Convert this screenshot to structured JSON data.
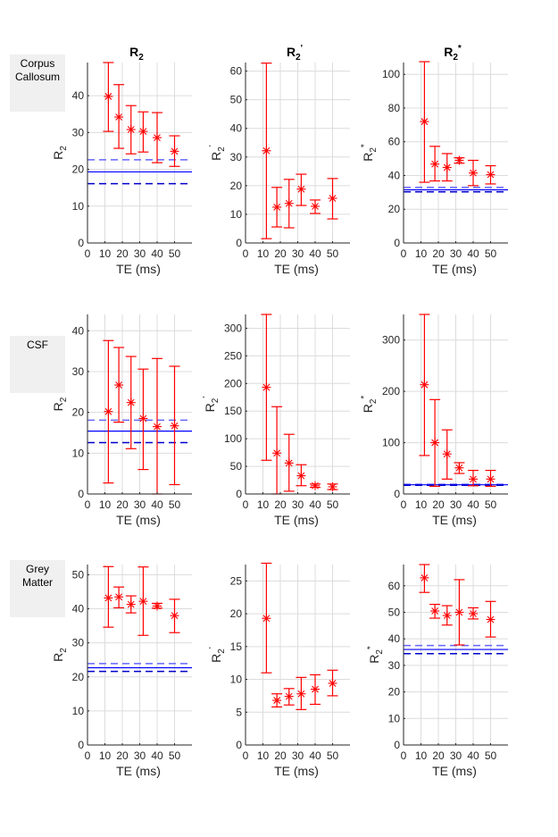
{
  "column_titles": [
    {
      "base": "R",
      "sub": "2",
      "sup": ""
    },
    {
      "base": "R",
      "sub": "2",
      "sup": "'"
    },
    {
      "base": "R",
      "sub": "2",
      "sup": "*"
    }
  ],
  "row_labels": [
    "Corpus Callosum",
    "CSF",
    "Grey Matter"
  ],
  "colors": {
    "data": "#ff0000",
    "ref_mean": "#0000ff",
    "ref_ci_dark": "#0000cc",
    "ref_ci_light": "#6666ff",
    "grid": "#dcdcdc",
    "axis": "#262626",
    "row_label_bg": "#f0f0f0"
  },
  "chart_data": [
    {
      "type": "errorbar",
      "row": "Corpus Callosum",
      "column": "R2",
      "xlabel": "TE (ms)",
      "ylabel": {
        "base": "R",
        "sub": "2",
        "sup": ""
      },
      "xlim": [
        0,
        60
      ],
      "xticks": [
        0,
        10,
        20,
        30,
        40,
        50
      ],
      "ylim": [
        0,
        49
      ],
      "yticks": [
        0,
        10,
        20,
        30,
        40
      ],
      "grid": true,
      "x": [
        12,
        18,
        25,
        32,
        40,
        50
      ],
      "y": [
        39.8,
        34.2,
        30.8,
        30.3,
        28.6,
        24.9
      ],
      "lower": [
        30.3,
        25.7,
        24.2,
        24.7,
        21.8,
        20.8
      ],
      "upper": [
        49.0,
        43.0,
        37.3,
        35.6,
        35.4,
        29.1
      ],
      "reference": {
        "mean": 19.3,
        "ci_low": 16.1,
        "ci_high": 22.6
      }
    },
    {
      "type": "errorbar",
      "row": "Corpus Callosum",
      "column": "R2'",
      "xlabel": "TE (ms)",
      "ylabel": {
        "base": "R",
        "sub": "2",
        "sup": "'"
      },
      "xlim": [
        0,
        60
      ],
      "xticks": [
        0,
        10,
        20,
        30,
        40,
        50
      ],
      "ylim": [
        0,
        63
      ],
      "yticks": [
        0,
        10,
        20,
        30,
        40,
        50,
        60
      ],
      "grid": true,
      "x": [
        12,
        18,
        25,
        32,
        40,
        50
      ],
      "y": [
        32.2,
        12.5,
        13.8,
        18.8,
        12.8,
        15.6
      ],
      "lower": [
        1.5,
        5.6,
        5.3,
        13.1,
        10.3,
        8.4
      ],
      "upper": [
        62.8,
        19.4,
        22.2,
        24.0,
        15.0,
        22.5
      ],
      "reference": null
    },
    {
      "type": "errorbar",
      "row": "Corpus Callosum",
      "column": "R2*",
      "xlabel": "TE (ms)",
      "ylabel": {
        "base": "R",
        "sub": "2",
        "sup": "*"
      },
      "xlim": [
        0,
        60
      ],
      "xticks": [
        0,
        10,
        20,
        30,
        40,
        50
      ],
      "ylim": [
        0,
        107
      ],
      "yticks": [
        0,
        20,
        40,
        60,
        80,
        100
      ],
      "grid": true,
      "x": [
        12,
        18,
        25,
        32,
        40,
        50
      ],
      "y": [
        72.0,
        46.8,
        44.8,
        49.0,
        41.5,
        40.5
      ],
      "lower": [
        36.0,
        36.8,
        36.8,
        47.3,
        34.0,
        35.0
      ],
      "upper": [
        107.5,
        57.3,
        53.0,
        50.5,
        49.0,
        45.8
      ],
      "reference": {
        "mean": 31.5,
        "ci_low": 30.3,
        "ci_high": 33.0
      }
    },
    {
      "type": "errorbar",
      "row": "CSF",
      "column": "R2",
      "xlabel": "TE (ms)",
      "ylabel": {
        "base": "R",
        "sub": "2",
        "sup": ""
      },
      "xlim": [
        0,
        60
      ],
      "xticks": [
        0,
        10,
        20,
        30,
        40,
        50
      ],
      "ylim": [
        0,
        44
      ],
      "yticks": [
        0,
        10,
        20,
        30,
        40
      ],
      "grid": true,
      "x": [
        12,
        18,
        25,
        32,
        40,
        50
      ],
      "y": [
        20.2,
        26.7,
        22.4,
        18.5,
        16.5,
        16.7
      ],
      "lower": [
        2.7,
        17.6,
        11.1,
        6.0,
        0.0,
        2.3
      ],
      "upper": [
        37.6,
        35.9,
        33.7,
        30.6,
        33.2,
        31.3
      ],
      "reference": {
        "mean": 15.4,
        "ci_low": 12.6,
        "ci_high": 18.1
      }
    },
    {
      "type": "errorbar",
      "row": "CSF",
      "column": "R2'",
      "xlabel": "TE (ms)",
      "ylabel": {
        "base": "R",
        "sub": "2",
        "sup": "'"
      },
      "xlim": [
        0,
        60
      ],
      "xticks": [
        0,
        10,
        20,
        30,
        40,
        50
      ],
      "ylim": [
        0,
        325
      ],
      "yticks": [
        0,
        50,
        100,
        150,
        200,
        250,
        300
      ],
      "grid": true,
      "x": [
        12,
        18,
        25,
        32,
        40,
        50
      ],
      "y": [
        193,
        74,
        56,
        33,
        15,
        13
      ],
      "lower": [
        61,
        0,
        5,
        15,
        12,
        8
      ],
      "upper": [
        325,
        158,
        108,
        53,
        18,
        18
      ],
      "reference": null
    },
    {
      "type": "errorbar",
      "row": "CSF",
      "column": "R2*",
      "xlabel": "TE (ms)",
      "ylabel": {
        "base": "R",
        "sub": "2",
        "sup": "*"
      },
      "xlim": [
        0,
        60
      ],
      "xticks": [
        0,
        10,
        20,
        30,
        40,
        50
      ],
      "ylim": [
        0,
        350
      ],
      "yticks": [
        0,
        100,
        200,
        300
      ],
      "grid": true,
      "x": [
        12,
        18,
        25,
        32,
        40,
        50
      ],
      "y": [
        213,
        100,
        78,
        51,
        29,
        29
      ],
      "lower": [
        75,
        15,
        29,
        40,
        16,
        15
      ],
      "upper": [
        350,
        184,
        125,
        61,
        46,
        46
      ],
      "reference": {
        "mean": 18,
        "ci_low": 17,
        "ci_high": 19
      }
    },
    {
      "type": "errorbar",
      "row": "Grey Matter",
      "column": "R2",
      "xlabel": "TE (ms)",
      "ylabel": {
        "base": "R",
        "sub": "2",
        "sup": ""
      },
      "xlim": [
        0,
        60
      ],
      "xticks": [
        0,
        10,
        20,
        30,
        40,
        50
      ],
      "ylim": [
        0,
        53
      ],
      "yticks": [
        0,
        10,
        20,
        30,
        40,
        50
      ],
      "grid": true,
      "x": [
        12,
        18,
        25,
        32,
        40,
        50
      ],
      "y": [
        43.2,
        43.5,
        41.3,
        42.2,
        40.8,
        38.0
      ],
      "lower": [
        34.6,
        40.3,
        38.8,
        32.2,
        40.2,
        33.0
      ],
      "upper": [
        52.4,
        46.4,
        43.8,
        52.3,
        41.6,
        42.8
      ],
      "reference": {
        "mean": 22.7,
        "ci_low": 21.6,
        "ci_high": 23.9
      }
    },
    {
      "type": "errorbar",
      "row": "Grey Matter",
      "column": "R2'",
      "xlabel": "TE (ms)",
      "ylabel": {
        "base": "R",
        "sub": "2",
        "sup": "'"
      },
      "xlim": [
        0,
        60
      ],
      "xticks": [
        0,
        10,
        20,
        30,
        40,
        50
      ],
      "ylim": [
        0,
        27.5
      ],
      "yticks": [
        0,
        5,
        10,
        15,
        20,
        25
      ],
      "grid": true,
      "x": [
        12,
        18,
        25,
        32,
        40,
        50
      ],
      "y": [
        19.3,
        6.8,
        7.4,
        7.8,
        8.5,
        9.4
      ],
      "lower": [
        11.0,
        5.8,
        6.1,
        5.4,
        6.2,
        7.5
      ],
      "upper": [
        27.7,
        7.8,
        8.6,
        10.3,
        10.7,
        11.4
      ],
      "reference": null
    },
    {
      "type": "errorbar",
      "row": "Grey Matter",
      "column": "R2*",
      "xlabel": "TE (ms)",
      "ylabel": {
        "base": "R",
        "sub": "2",
        "sup": "*"
      },
      "xlim": [
        0,
        60
      ],
      "xticks": [
        0,
        10,
        20,
        30,
        40,
        50
      ],
      "ylim": [
        0,
        68
      ],
      "yticks": [
        0,
        10,
        20,
        30,
        40,
        50,
        60
      ],
      "grid": true,
      "x": [
        12,
        18,
        25,
        32,
        40,
        50
      ],
      "y": [
        63.0,
        50.5,
        48.8,
        50.0,
        49.5,
        47.3
      ],
      "lower": [
        57.5,
        47.8,
        45.2,
        37.7,
        47.5,
        40.7
      ],
      "upper": [
        68.0,
        53.0,
        52.5,
        62.3,
        51.7,
        54.1
      ],
      "reference": {
        "mean": 36.0,
        "ci_low": 34.4,
        "ci_high": 37.5
      }
    }
  ]
}
